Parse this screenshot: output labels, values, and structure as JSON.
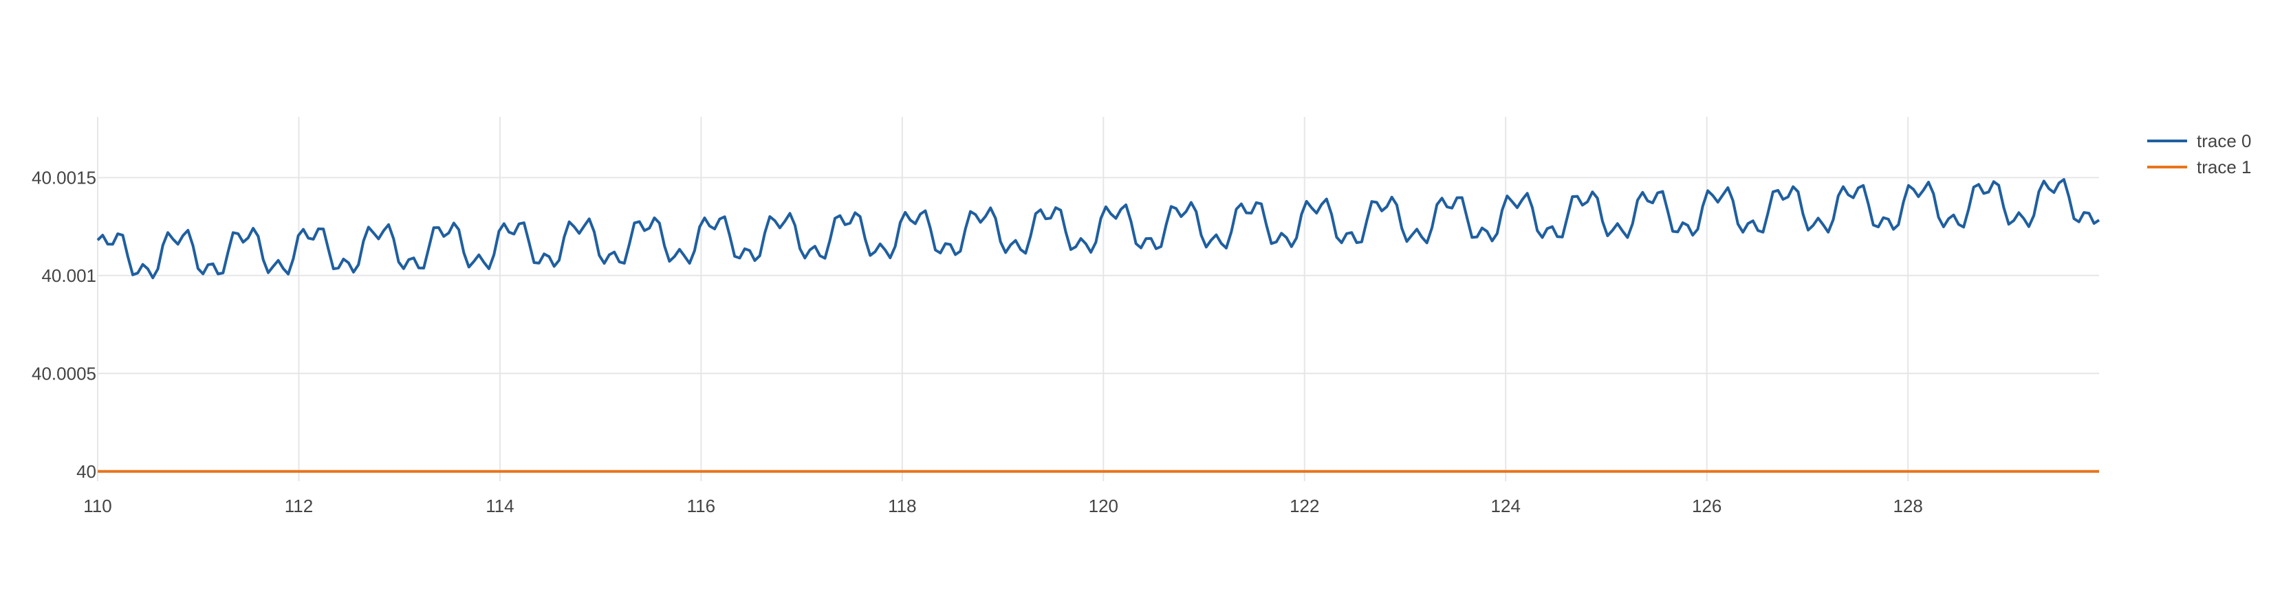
{
  "chart_data": {
    "type": "line",
    "title": "",
    "xlabel": "",
    "ylabel": "",
    "xlim": [
      110,
      129.9
    ],
    "ylim": [
      39.99995,
      40.00181
    ],
    "x_ticks": [
      110,
      112,
      114,
      116,
      118,
      120,
      122,
      124,
      126,
      128
    ],
    "x_tick_labels": [
      "110",
      "112",
      "114",
      "116",
      "118",
      "120",
      "122",
      "124",
      "126",
      "128"
    ],
    "y_ticks": [
      40,
      40.0005,
      40.001,
      40.0015
    ],
    "y_tick_labels": [
      "40",
      "40.0005",
      "40.001",
      "40.0015"
    ],
    "grid": true,
    "legend_position": "top-right",
    "series": [
      {
        "name": "trace 0",
        "color": "#1f5fa0",
        "x_start": 110,
        "x_end": 129.9,
        "samples": 400,
        "baseline_start": 40.0011,
        "baseline_end": 40.00138,
        "oscillation_period": 0.666,
        "oscillation_amplitude": 0.00016
      },
      {
        "name": "trace 1",
        "color": "#e8741c",
        "x": [
          110,
          129.9
        ],
        "y": [
          40,
          40
        ]
      }
    ]
  }
}
